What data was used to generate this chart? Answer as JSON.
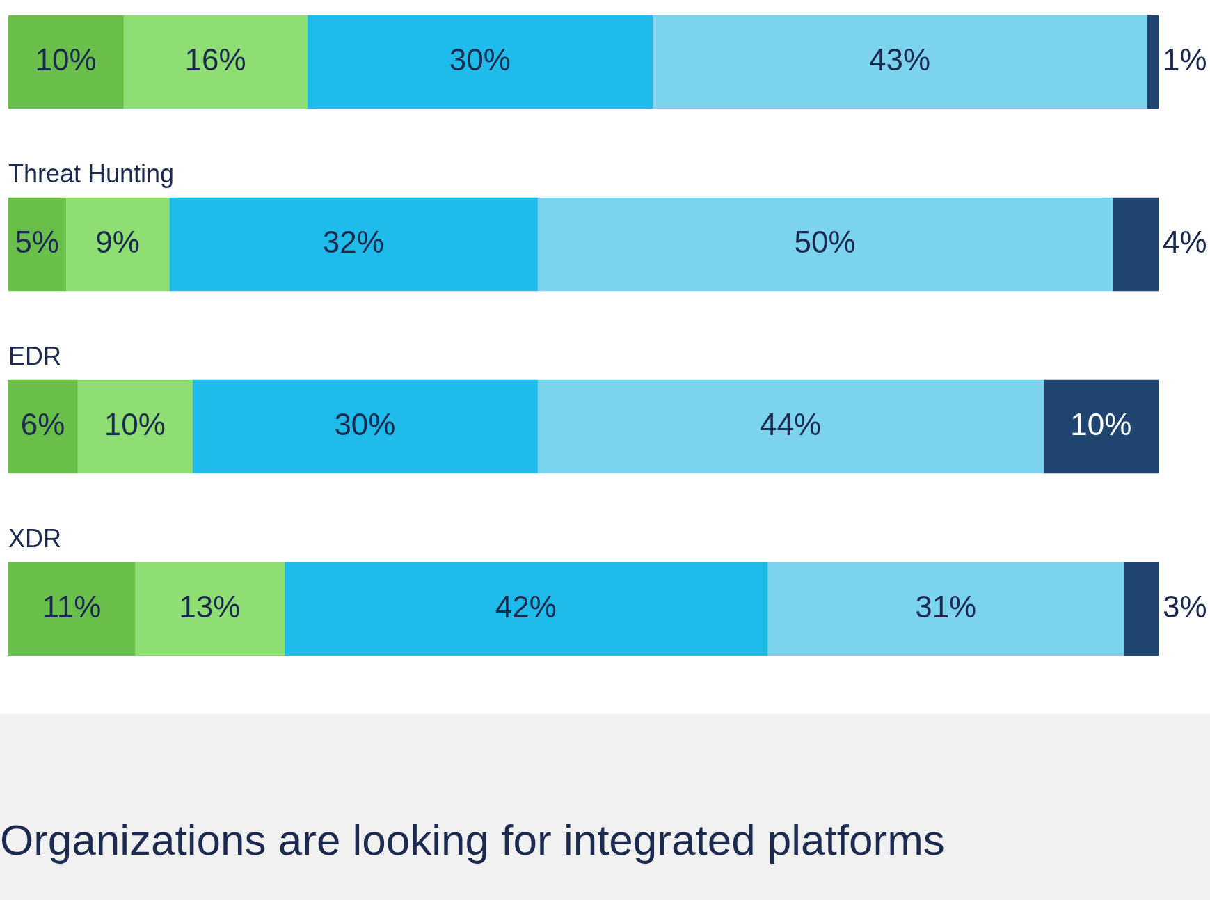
{
  "chart_data": {
    "type": "bar",
    "orientation": "horizontal",
    "stacked": true,
    "legend": false,
    "tick_labels": false,
    "categories": [
      null,
      "Threat Hunting",
      "EDR",
      "XDR"
    ],
    "series": [
      {
        "color": "#6abf4b",
        "values": [
          10,
          5,
          6,
          11
        ],
        "value_labels": [
          "10%",
          "5%",
          "6%",
          "11%"
        ]
      },
      {
        "color": "#8ede74",
        "values": [
          16,
          9,
          10,
          13
        ],
        "value_labels": [
          "16%",
          "9%",
          "10%",
          "13%"
        ]
      },
      {
        "color": "#1fbbea",
        "values": [
          30,
          32,
          30,
          42
        ],
        "value_labels": [
          "30%",
          "32%",
          "30%",
          "42%"
        ]
      },
      {
        "color": "#7cd3ee",
        "values": [
          43,
          50,
          44,
          31
        ],
        "value_labels": [
          "43%",
          "50%",
          "44%",
          "31%"
        ]
      },
      {
        "color": "#1f4570",
        "values": [
          1,
          4,
          10,
          3
        ],
        "value_labels": [
          "1%",
          "4%",
          "10%",
          "3%"
        ]
      }
    ],
    "annotations": [
      "Organizations are looking for integrated platforms"
    ]
  }
}
